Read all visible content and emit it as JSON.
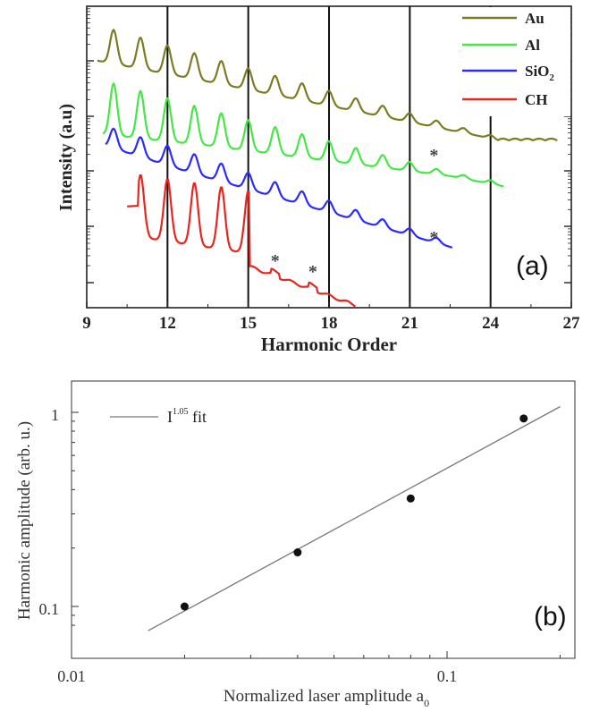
{
  "chart_data": [
    {
      "panel_label": "(a)",
      "type": "line",
      "xlabel": "Harmonic Order",
      "ylabel": "Intensity (a.u)",
      "xlim": [
        9,
        27
      ],
      "xticks": [
        9,
        12,
        15,
        18,
        21,
        24,
        27
      ],
      "x_tick_labels": [
        "9",
        "12",
        "15",
        "18",
        "21",
        "24",
        "27"
      ],
      "y_scale": "log",
      "y_tick_labels_shown": false,
      "vertical_lines": [
        12,
        15,
        18,
        21,
        24
      ],
      "legend": "top-right",
      "legend_entries": [
        {
          "name": "Au",
          "color": "#7b7b22"
        },
        {
          "name": "Al",
          "color": "#44e844"
        },
        {
          "name": "SiO",
          "sub": "2",
          "color": "#2a2aff"
        },
        {
          "name": "CH",
          "color": "#e8261f"
        }
      ],
      "annotations": [
        "*",
        "*",
        "*",
        "*"
      ],
      "series": [
        {
          "name": "Au",
          "color": "#7b7b22",
          "x_range": [
            9.4,
            26.5
          ],
          "harmonic_peaks": [
            10,
            11,
            12,
            13,
            14,
            15,
            16,
            17,
            18,
            19,
            20,
            21,
            22,
            23,
            24
          ]
        },
        {
          "name": "Al",
          "color": "#44e844",
          "x_range": [
            9.6,
            24.5
          ],
          "harmonic_peaks": [
            10,
            11,
            12,
            13,
            14,
            15,
            16,
            17,
            18,
            19,
            20,
            21,
            22
          ]
        },
        {
          "name": "SiO2",
          "color": "#2a2aff",
          "x_range": [
            9.7,
            22.6
          ],
          "harmonic_peaks": [
            10,
            11,
            12,
            13,
            14,
            15,
            16,
            17,
            18,
            19,
            20,
            21,
            22
          ]
        },
        {
          "name": "CH",
          "color": "#e8261f",
          "x_range": [
            10.5,
            19.0
          ],
          "harmonic_peaks": [
            11,
            12,
            13,
            14,
            15,
            16,
            17.5
          ]
        }
      ]
    },
    {
      "panel_label": "(b)",
      "type": "scatter",
      "xlabel": "Normalized laser amplitude a",
      "xlabel_sub": "0",
      "ylabel": "Harmonic amplitude (arb. u.)",
      "x_scale": "log",
      "y_scale": "log",
      "xlim": [
        0.01,
        0.25
      ],
      "ylim": [
        0.07,
        1.5
      ],
      "x_tick_labels": [
        "0.01",
        "0.1"
      ],
      "y_tick_labels": [
        "0.1",
        "1"
      ],
      "legend": "top-left",
      "legend_entries": [
        {
          "name": "I",
          "sup": "1.05",
          "suffix": " fit",
          "color": "#777777"
        }
      ],
      "points": {
        "x": [
          0.02,
          0.04,
          0.08,
          0.16
        ],
        "y": [
          0.1,
          0.19,
          0.36,
          0.93
        ]
      },
      "fit": {
        "exponent": 1.05,
        "x": [
          0.016,
          0.2
        ],
        "y": [
          0.075,
          1.07
        ]
      }
    }
  ]
}
